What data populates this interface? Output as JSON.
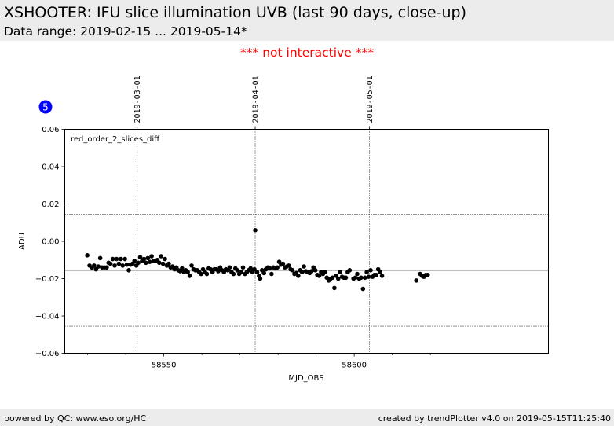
{
  "header": {
    "title": "XSHOOTER: IFU slice illumination UVB (last 90 days, close-up)",
    "data_range": "Data range: 2019-02-15 ... 2019-05-14*"
  },
  "notice": "*** not interactive ***",
  "badge": {
    "label": "5",
    "color": "#0000ff"
  },
  "footer": {
    "left": "powered by QC: www.eso.org/HC",
    "right": "created by trendPlotter v4.0 on 2019-05-15T11:25:40"
  },
  "chart_data": {
    "type": "scatter",
    "xlabel": "MJD_OBS",
    "ylabel": "ADU",
    "annotation": "red_order_2_slices_diff",
    "xlim": [
      58524,
      58651
    ],
    "ylim": [
      -0.06,
      0.06
    ],
    "x_ticks": [
      58550,
      58600
    ],
    "x_minor_ticks": [
      58530,
      58540,
      58560,
      58570,
      58580,
      58590,
      58610,
      58620
    ],
    "y_ticks": [
      0.06,
      0.04,
      0.02,
      0.0,
      -0.02,
      -0.04,
      -0.06
    ],
    "y_tick_labels": [
      "0.06",
      "0.04",
      "0.02",
      "0.00",
      "−0.02",
      "−0.04",
      "−0.06"
    ],
    "date_markers": [
      {
        "x": 58543,
        "label": "2019-03-01"
      },
      {
        "x": 58574,
        "label": "2019-04-01"
      },
      {
        "x": 58604,
        "label": "2019-05-01"
      }
    ],
    "reference_lines": [
      {
        "y": -0.0155,
        "style": "solid"
      },
      {
        "y": 0.0145,
        "style": "dotted"
      },
      {
        "y": -0.0455,
        "style": "dotted"
      }
    ],
    "point_color": "#000000",
    "points": [
      [
        58529.9,
        -0.0075
      ],
      [
        58530.5,
        -0.013
      ],
      [
        58531.1,
        -0.014
      ],
      [
        58531.7,
        -0.013
      ],
      [
        58532.2,
        -0.015
      ],
      [
        58532.8,
        -0.0135
      ],
      [
        58533.3,
        -0.009
      ],
      [
        58533.8,
        -0.014
      ],
      [
        58534.4,
        -0.014
      ],
      [
        58535.0,
        -0.014
      ],
      [
        58535.5,
        -0.0115
      ],
      [
        58536.0,
        -0.012
      ],
      [
        58536.6,
        -0.0095
      ],
      [
        58537.1,
        -0.013
      ],
      [
        58537.6,
        -0.0095
      ],
      [
        58538.2,
        -0.012
      ],
      [
        58538.7,
        -0.0095
      ],
      [
        58539.2,
        -0.013
      ],
      [
        58539.8,
        -0.0095
      ],
      [
        58540.3,
        -0.0125
      ],
      [
        58540.8,
        -0.0155
      ],
      [
        58541.3,
        -0.0125
      ],
      [
        58541.8,
        -0.012
      ],
      [
        58542.3,
        -0.0105
      ],
      [
        58542.8,
        -0.013
      ],
      [
        58543.3,
        -0.0115
      ],
      [
        58543.8,
        -0.0085
      ],
      [
        58544.3,
        -0.0105
      ],
      [
        58544.8,
        -0.0095
      ],
      [
        58545.3,
        -0.0115
      ],
      [
        58545.8,
        -0.009
      ],
      [
        58546.3,
        -0.011
      ],
      [
        58546.8,
        -0.008
      ],
      [
        58547.3,
        -0.0105
      ],
      [
        58547.8,
        -0.0105
      ],
      [
        58548.3,
        -0.01
      ],
      [
        58548.8,
        -0.0115
      ],
      [
        58549.3,
        -0.008
      ],
      [
        58549.8,
        -0.012
      ],
      [
        58550.3,
        -0.0095
      ],
      [
        58550.8,
        -0.013
      ],
      [
        58551.3,
        -0.012
      ],
      [
        58551.8,
        -0.014
      ],
      [
        58552.3,
        -0.0135
      ],
      [
        58552.8,
        -0.015
      ],
      [
        58553.3,
        -0.014
      ],
      [
        58553.8,
        -0.0155
      ],
      [
        58554.3,
        -0.016
      ],
      [
        58554.8,
        -0.0145
      ],
      [
        58555.3,
        -0.0165
      ],
      [
        58555.8,
        -0.0155
      ],
      [
        58556.3,
        -0.0165
      ],
      [
        58556.8,
        -0.0185
      ],
      [
        58557.3,
        -0.013
      ],
      [
        58557.8,
        -0.015
      ],
      [
        58558.3,
        -0.0155
      ],
      [
        58558.8,
        -0.0155
      ],
      [
        58559.3,
        -0.0165
      ],
      [
        58559.8,
        -0.0175
      ],
      [
        58560.3,
        -0.015
      ],
      [
        58560.8,
        -0.0165
      ],
      [
        58561.3,
        -0.0175
      ],
      [
        58561.8,
        -0.0145
      ],
      [
        58562.3,
        -0.015
      ],
      [
        58562.8,
        -0.0165
      ],
      [
        58563.3,
        -0.015
      ],
      [
        58563.8,
        -0.015
      ],
      [
        58564.3,
        -0.016
      ],
      [
        58564.8,
        -0.014
      ],
      [
        58565.3,
        -0.0155
      ],
      [
        58565.8,
        -0.0165
      ],
      [
        58566.3,
        -0.015
      ],
      [
        58566.8,
        -0.0155
      ],
      [
        58567.3,
        -0.014
      ],
      [
        58567.8,
        -0.0165
      ],
      [
        58568.3,
        -0.0175
      ],
      [
        58568.8,
        -0.0145
      ],
      [
        58569.3,
        -0.0155
      ],
      [
        58569.8,
        -0.0175
      ],
      [
        58570.3,
        -0.0165
      ],
      [
        58570.8,
        -0.014
      ],
      [
        58571.3,
        -0.0175
      ],
      [
        58571.8,
        -0.0165
      ],
      [
        58572.3,
        -0.0155
      ],
      [
        58572.8,
        -0.0145
      ],
      [
        58573.3,
        -0.0165
      ],
      [
        58573.8,
        -0.015
      ],
      [
        58574.0,
        0.006
      ],
      [
        58574.5,
        -0.0165
      ],
      [
        58575.0,
        -0.0185
      ],
      [
        58575.3,
        -0.02
      ],
      [
        58575.8,
        -0.0155
      ],
      [
        58576.3,
        -0.017
      ],
      [
        58576.8,
        -0.015
      ],
      [
        58577.3,
        -0.014
      ],
      [
        58577.8,
        -0.0145
      ],
      [
        58578.3,
        -0.0175
      ],
      [
        58578.8,
        -0.014
      ],
      [
        58579.3,
        -0.0145
      ],
      [
        58579.8,
        -0.014
      ],
      [
        58580.3,
        -0.011
      ],
      [
        58580.8,
        -0.0125
      ],
      [
        58581.3,
        -0.012
      ],
      [
        58581.8,
        -0.014
      ],
      [
        58582.3,
        -0.0135
      ],
      [
        58582.8,
        -0.013
      ],
      [
        58583.3,
        -0.015
      ],
      [
        58583.8,
        -0.0155
      ],
      [
        58584.3,
        -0.0175
      ],
      [
        58584.8,
        -0.017
      ],
      [
        58585.3,
        -0.0185
      ],
      [
        58585.8,
        -0.0155
      ],
      [
        58586.3,
        -0.0165
      ],
      [
        58586.8,
        -0.0135
      ],
      [
        58587.3,
        -0.016
      ],
      [
        58587.8,
        -0.0165
      ],
      [
        58588.3,
        -0.017
      ],
      [
        58588.8,
        -0.016
      ],
      [
        58589.3,
        -0.014
      ],
      [
        58589.8,
        -0.0155
      ],
      [
        58590.3,
        -0.018
      ],
      [
        58590.8,
        -0.0185
      ],
      [
        58591.3,
        -0.0165
      ],
      [
        58591.8,
        -0.0175
      ],
      [
        58592.3,
        -0.0165
      ],
      [
        58592.8,
        -0.0195
      ],
      [
        58593.3,
        -0.021
      ],
      [
        58593.8,
        -0.02
      ],
      [
        58594.3,
        -0.0195
      ],
      [
        58594.8,
        -0.025
      ],
      [
        58595.3,
        -0.0185
      ],
      [
        58595.8,
        -0.02
      ],
      [
        58596.3,
        -0.0165
      ],
      [
        58596.8,
        -0.019
      ],
      [
        58597.3,
        -0.0195
      ],
      [
        58597.8,
        -0.0195
      ],
      [
        58598.3,
        -0.0165
      ],
      [
        58598.8,
        -0.0155
      ],
      [
        58599.8,
        -0.02
      ],
      [
        58600.3,
        -0.0195
      ],
      [
        58600.8,
        -0.0175
      ],
      [
        58601.3,
        -0.02
      ],
      [
        58601.8,
        -0.0195
      ],
      [
        58602.3,
        -0.0255
      ],
      [
        58602.8,
        -0.0195
      ],
      [
        58603.3,
        -0.0165
      ],
      [
        58603.8,
        -0.019
      ],
      [
        58604.3,
        -0.0155
      ],
      [
        58604.8,
        -0.019
      ],
      [
        58605.3,
        -0.018
      ],
      [
        58605.8,
        -0.018
      ],
      [
        58606.3,
        -0.015
      ],
      [
        58606.8,
        -0.0165
      ],
      [
        58607.3,
        -0.0185
      ],
      [
        58616.3,
        -0.021
      ],
      [
        58617.3,
        -0.0175
      ],
      [
        58617.8,
        -0.0185
      ],
      [
        58618.3,
        -0.019
      ],
      [
        58618.8,
        -0.018
      ],
      [
        58619.3,
        -0.018
      ]
    ]
  }
}
